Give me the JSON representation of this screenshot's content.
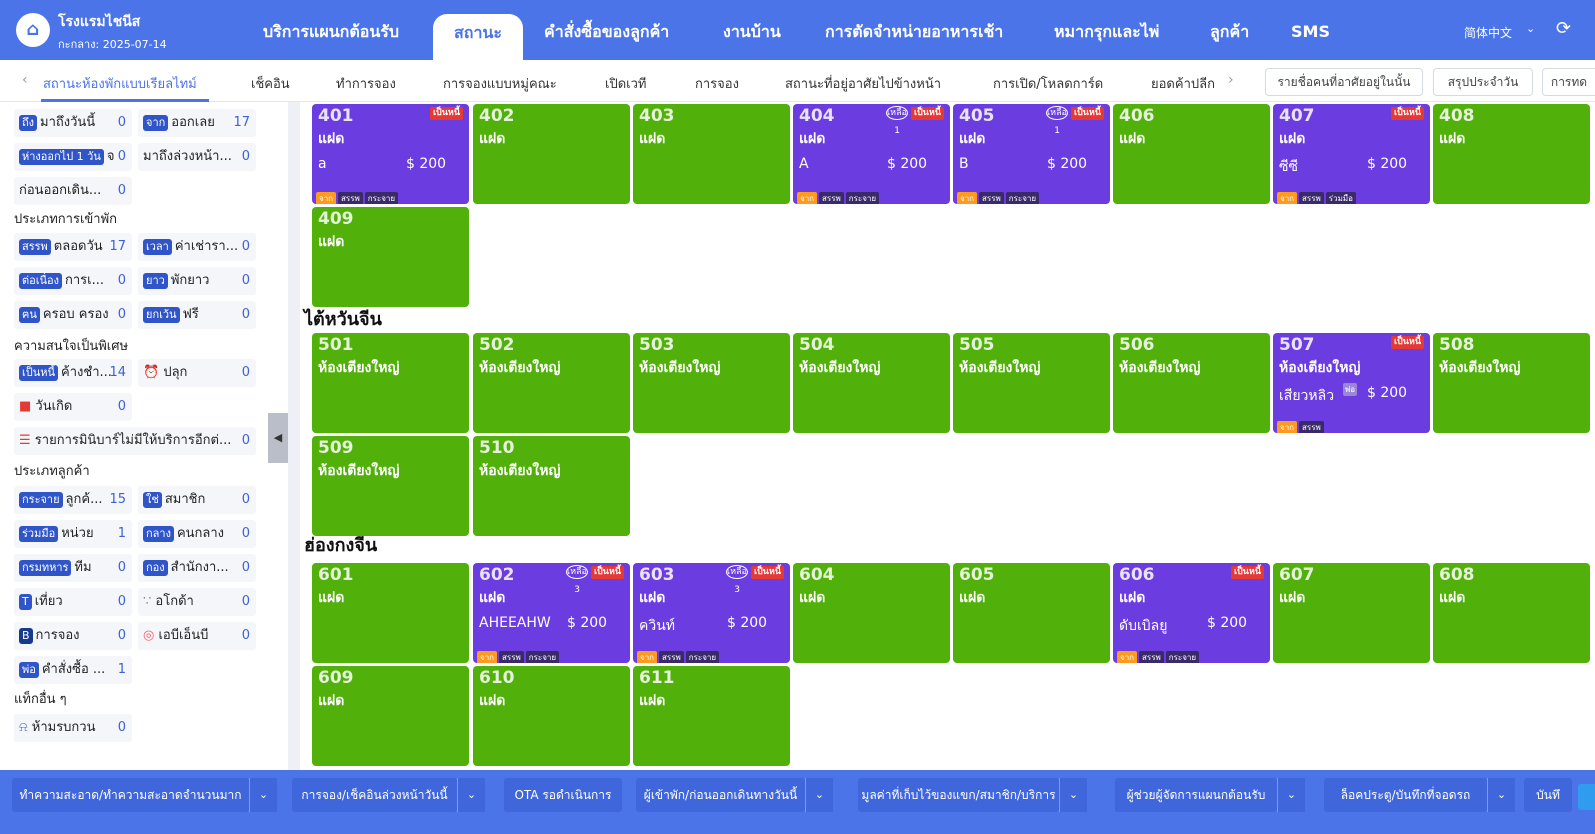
{
  "header": {
    "hotel_name": "โรงแรมไชนีส",
    "date": "กะกลาง: 2025-07-14",
    "nav": [
      "บริการแผนกต้อนรับ",
      "สถานะ",
      "คำสั่งซื้อของลูกค้า",
      "งานบ้าน",
      "การตัดจำหน่ายอาหารเช้า",
      "หมากรุกและไพ่",
      "ลูกค้า",
      "SMS"
    ],
    "active_nav": "สถานะ",
    "language": "简体中文"
  },
  "subtabs": [
    "สถานะห้องพักแบบเรียลไทม์",
    "เช็คอิน",
    "ทำการจอง",
    "การจองแบบหมู่คณะ",
    "เปิดเวที",
    "การจอง",
    "สถานะที่อยู่อาศัยไปข้างหน้า",
    "การเปิด/โหลดการ์ด",
    "ยอดค้าปลีก"
  ],
  "sub_buttons": [
    "รายชื่อคนที่อาศัยอยู่ในนั้น",
    "สรุปประจำวัน",
    "การทด"
  ],
  "stats": {
    "arrive_today": {
      "badge": "ถึง",
      "label": "มาถึงวันนี้",
      "count": "0"
    },
    "depart": {
      "badge": "จาก",
      "label": "ออกเลย",
      "count": "17"
    },
    "away1": {
      "badge": "ห่างออกไป 1 วัน",
      "label": "จ",
      "count": "0"
    },
    "early_arrive": {
      "label": "มาถึงล่วงหน้า...",
      "count": "0"
    },
    "before_checkout": {
      "label": "ก่อนออกเดิน...",
      "count": "0"
    },
    "stay_type_title": "ประเภทการเข้าพัก",
    "allday": {
      "badge": "สรรพ",
      "label": "ตลอดวัน",
      "count": "17"
    },
    "hourly": {
      "badge": "เวลา",
      "label": "ค่าเช่ารา...",
      "count": "0"
    },
    "continuous": {
      "badge": "ต่อเนื่อง",
      "label": "การเ...",
      "count": "0"
    },
    "longstay": {
      "badge": "ยาว",
      "label": "พักยาว",
      "count": "0"
    },
    "cover": {
      "badge": "ฅน",
      "label": "ครอบ ครอง",
      "count": "0"
    },
    "free": {
      "badge": "ยกเว้น",
      "label": "ฟรี",
      "count": "0"
    },
    "special_title": "ความสนใจเป็นพิเศษ",
    "debt": {
      "badge": "เป็นหนี้",
      "label": "ค้างชำ...",
      "count": "14"
    },
    "wake": {
      "label": "ปลุก",
      "count": "0"
    },
    "birthday": {
      "label": "วันเกิด",
      "count": "0"
    },
    "minibar": {
      "label": "รายการมินิบาร์ไม่มีให้บริการอีกต่...",
      "count": "0"
    },
    "guest_type_title": "ประเภทลูกค้า",
    "scatter": {
      "badge": "กระจาย",
      "label": "ลูกค้...",
      "count": "15"
    },
    "member": {
      "badge": "ใช่",
      "label": "สมาชิก",
      "count": "0"
    },
    "coop": {
      "badge": "ร่วมมือ",
      "label": "หน่วย",
      "count": "1"
    },
    "middle": {
      "badge": "กลาง",
      "label": "คนกลาง",
      "count": "0"
    },
    "military": {
      "badge": "กรมทหาร",
      "label": "ทีม",
      "count": "0"
    },
    "office": {
      "badge": "กอง",
      "label": "สำนักงา...",
      "count": "0"
    },
    "trip": {
      "label": "เที่ยว",
      "count": "0"
    },
    "agoda": {
      "label": "อโกด้า",
      "count": "0"
    },
    "booking": {
      "label": "การจอง",
      "count": "0"
    },
    "airbnb": {
      "label": "เอบีเอ็นบี",
      "count": "0"
    },
    "order": {
      "badge": "พ่อ",
      "label": "คำสั่งซื้อ ...",
      "count": "1"
    },
    "tags_title": "แท็กอื่น ๆ",
    "dnd": {
      "label": "ห้ามรบกวน",
      "count": "0"
    }
  },
  "floors": [
    "ไต้หวันจีน",
    "ฮ่องกงจีน"
  ],
  "rooms": [
    {
      "num": "401",
      "type": "แฝด",
      "status": "occ",
      "guest": "a",
      "price": "$ 200",
      "debt": "เป็นหนี้",
      "tags": [
        "จาก",
        "สรรพ",
        "กระจาย"
      ]
    },
    {
      "num": "402",
      "type": "แฝด",
      "status": "vac"
    },
    {
      "num": "403",
      "type": "แฝด",
      "status": "vac"
    },
    {
      "num": "404",
      "type": "แฝด",
      "status": "occ",
      "guest": "A",
      "price": "$ 200",
      "debt": "เป็นหนี้",
      "stay": "เหลือ",
      "nights": "1",
      "tags": [
        "จาก",
        "สรรพ",
        "กระจาย"
      ]
    },
    {
      "num": "405",
      "type": "แฝด",
      "status": "occ",
      "guest": "B",
      "price": "$ 200",
      "debt": "เป็นหนี้",
      "stay": "เหลือ",
      "nights": "1",
      "tags": [
        "จาก",
        "สรรพ",
        "กระจาย"
      ]
    },
    {
      "num": "406",
      "type": "แฝด",
      "status": "vac"
    },
    {
      "num": "407",
      "type": "แฝด",
      "status": "occ",
      "guest": "ซีซี",
      "price": "$ 200",
      "debt": "เป็นหนี้",
      "tags": [
        "จาก",
        "สรรพ",
        "ร่วมมือ"
      ]
    },
    {
      "num": "408",
      "type": "แฝด",
      "status": "vac"
    },
    {
      "num": "409",
      "type": "แฝด",
      "status": "vac"
    },
    {
      "num": "501",
      "type": "ห้องเตียงใหญ่",
      "status": "vac"
    },
    {
      "num": "502",
      "type": "ห้องเตียงใหญ่",
      "status": "vac"
    },
    {
      "num": "503",
      "type": "ห้องเตียงใหญ่",
      "status": "vac"
    },
    {
      "num": "504",
      "type": "ห้องเตียงใหญ่",
      "status": "vac"
    },
    {
      "num": "505",
      "type": "ห้องเตียงใหญ่",
      "status": "vac"
    },
    {
      "num": "506",
      "type": "ห้องเตียงใหญ่",
      "status": "vac"
    },
    {
      "num": "507",
      "type": "ห้องเตียงใหญ่",
      "status": "occ",
      "guest": "เสียวหลิว",
      "price": "$ 200",
      "debt": "เป็นหนี้",
      "small": "พ่อ",
      "tags": [
        "จาก",
        "สรรพ"
      ]
    },
    {
      "num": "508",
      "type": "ห้องเตียงใหญ่",
      "status": "vac"
    },
    {
      "num": "509",
      "type": "ห้องเตียงใหญ่",
      "status": "vac"
    },
    {
      "num": "510",
      "type": "ห้องเตียงใหญ่",
      "status": "vac"
    },
    {
      "num": "601",
      "type": "แฝด",
      "status": "vac"
    },
    {
      "num": "602",
      "type": "แฝด",
      "status": "occ",
      "guest": "AHEEAHW",
      "price": "$ 200",
      "debt": "เป็นหนี้",
      "stay": "เหลือ",
      "nights": "3",
      "tags": [
        "จาก",
        "สรรพ",
        "กระจาย"
      ]
    },
    {
      "num": "603",
      "type": "แฝด",
      "status": "occ",
      "guest": "ควินท์",
      "price": "$ 200",
      "debt": "เป็นหนี้",
      "stay": "เหลือ",
      "nights": "3",
      "tags": [
        "จาก",
        "สรรพ",
        "กระจาย"
      ]
    },
    {
      "num": "604",
      "type": "แฝด",
      "status": "vac"
    },
    {
      "num": "605",
      "type": "แฝด",
      "status": "vac"
    },
    {
      "num": "606",
      "type": "แฝด",
      "status": "occ",
      "guest": "ดับเบิลยู",
      "price": "$ 200",
      "debt": "เป็นหนี้",
      "tags": [
        "จาก",
        "สรรพ",
        "กระจาย"
      ]
    },
    {
      "num": "607",
      "type": "แฝด",
      "status": "vac"
    },
    {
      "num": "608",
      "type": "แฝด",
      "status": "vac"
    },
    {
      "num": "609",
      "type": "แฝด",
      "status": "vac"
    },
    {
      "num": "610",
      "type": "แฝด",
      "status": "vac"
    },
    {
      "num": "611",
      "type": "แฝด",
      "status": "vac"
    }
  ],
  "bottom": [
    "ทำความสะอาด/ทำความสะอาดจำนวนมาก",
    "การจอง/เช็คอินล่วงหน้าวันนี้",
    "OTA รอดำเนินการ",
    "ผู้เข้าพัก/ก่อนออกเดินทางวันนี้",
    "มูลค่าที่เก็บไว้ของแขก/สมาชิก/บริการ",
    "ผู้ช่วยผู้จัดการแผนกต้อนรับ",
    "ล็อคประตู/บันทึกที่จอดรถ",
    "บันทึ"
  ],
  "colors": {
    "primary": "#4a74e8",
    "vacant": "#52b00a",
    "occupied": "#6b3de0",
    "debt": "#e53935"
  }
}
